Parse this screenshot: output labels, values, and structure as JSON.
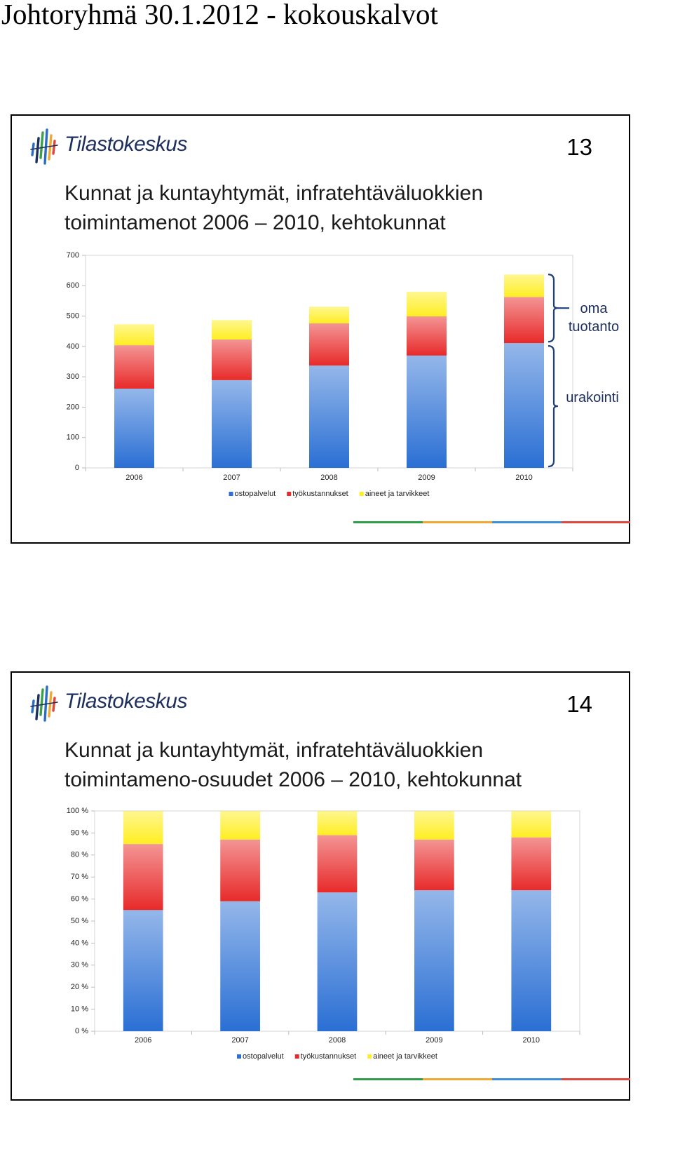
{
  "page_title": "Johtoryhmä 30.1.2012 - kokouskalvot",
  "slides": [
    {
      "logo": "Tilastokeskus",
      "number": "13"
    },
    {
      "logo": "Tilastokeskus",
      "number": "14"
    }
  ],
  "chart_data": [
    {
      "type": "stacked-bar",
      "title": "Kunnat ja kuntayhtymät, infratehtäväluokkien toimintamenot 2006 – 2010, kehtokunnat",
      "categories": [
        "2006",
        "2007",
        "2008",
        "2009",
        "2010"
      ],
      "series": [
        {
          "name": "ostopalvelut",
          "color": "#2a6fd4",
          "values": [
            261,
            289,
            337,
            370,
            411
          ]
        },
        {
          "name": "työkustannukset",
          "color": "#e82a2a",
          "values": [
            143,
            134,
            139,
            129,
            152
          ]
        },
        {
          "name": "aineet ja tarvikkeet",
          "color": "#ffee22",
          "values": [
            69,
            64,
            55,
            81,
            74
          ]
        }
      ],
      "ylim": [
        0,
        700
      ],
      "yticks": [
        0,
        100,
        200,
        300,
        400,
        500,
        600,
        700
      ],
      "grid": false,
      "annotations": [
        "oma tuotanto",
        "urakointi"
      ]
    },
    {
      "type": "stacked-bar",
      "title": "Kunnat ja kuntayhtymät, infratehtäväluokkien toimintameno-osuudet 2006 – 2010, kehtokunnat",
      "categories": [
        "2006",
        "2007",
        "2008",
        "2009",
        "2010"
      ],
      "series": [
        {
          "name": "ostopalvelut",
          "color": "#2a6fd4",
          "values": [
            55,
            59,
            63,
            64,
            64
          ]
        },
        {
          "name": "työkustannukset",
          "color": "#e82a2a",
          "values": [
            30,
            28,
            26,
            23,
            24
          ]
        },
        {
          "name": "aineet ja tarvikkeet",
          "color": "#ffee22",
          "values": [
            15,
            13,
            11,
            13,
            12
          ]
        }
      ],
      "ylim": [
        0,
        100
      ],
      "yticks": [
        {
          "value": 0,
          "label": "0 %"
        },
        {
          "value": 10,
          "label": "10 %"
        },
        {
          "value": 20,
          "label": "20 %"
        },
        {
          "value": 30,
          "label": "30 %"
        },
        {
          "value": 40,
          "label": "40 %"
        },
        {
          "value": 50,
          "label": "50 %"
        },
        {
          "value": 60,
          "label": "60 %"
        },
        {
          "value": 70,
          "label": "70 %"
        },
        {
          "value": 80,
          "label": "80 %"
        },
        {
          "value": 90,
          "label": "90 %"
        },
        {
          "value": 100,
          "label": "100 %"
        }
      ],
      "grid": false
    }
  ]
}
